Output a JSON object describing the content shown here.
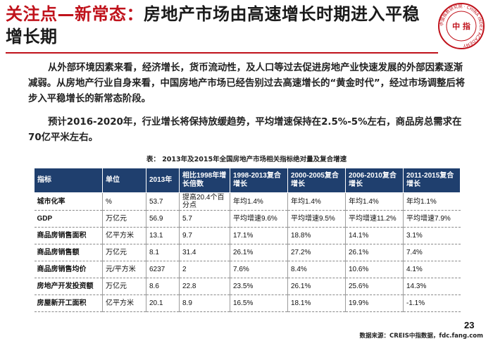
{
  "title": {
    "prefix": "关注点—新常态：",
    "rest": "房地产市场由高速增长时期进入平稳增长期"
  },
  "logo": {
    "center_text": "中 指",
    "ring_text": "中国指数研究院 · CHINA INDEX ACADEMY",
    "color": "#c0121b"
  },
  "paragraphs": [
    "从外部环境因素来看，经济增长，货币流动性，及人口等过去促进房地产业快速发展的外部因素逐渐减弱。从房地产行业自身来看，中国房地产市场已经告别过去高速增长的“黄金时代”，经过市场调整后将步入平稳增长的新常态阶段。",
    "预计2016-2020年，行业增长将保持放缓趋势，平均增速保持在2.5%-5%左右，商品房总需求在70亿平米左右。"
  ],
  "table_caption": "表： 2013年及2015年全国房地产市场相关指标绝对量及复合增速",
  "table": {
    "headers": [
      "指标",
      "单位",
      "2013年",
      "相比1998年增长倍数",
      "1998-2013复合增长",
      "2000-2005复合增长",
      "2006-2010复合增长",
      "2011-2015复合增长"
    ],
    "rows": [
      [
        "城市化率",
        "%",
        "53.7",
        "提高20.4个百分点",
        "年均1.4%",
        "年均1.4%",
        "年均1.4%",
        "年均1.1%"
      ],
      [
        "GDP",
        "万亿元",
        "56.9",
        "5.7",
        "平均增速9.6%",
        "平均增速9.5%",
        "平均增速11.2%",
        "平均增速7.9%"
      ],
      [
        "商品房销售面积",
        "亿平方米",
        "13.1",
        "9.7",
        "17.1%",
        "18.8%",
        "14.1%",
        "3.1%"
      ],
      [
        "商品房销售额",
        "万亿元",
        "8.1",
        "31.4",
        "26.1%",
        "27.2%",
        "26.1%",
        "7.4%"
      ],
      [
        "商品房销售均价",
        "元/平方米",
        "6237",
        "2",
        "7.6%",
        "8.4%",
        "10.6%",
        "4.1%"
      ],
      [
        "房地产开发投资额",
        "万亿元",
        "8.6",
        "22.8",
        "23.5%",
        "26.1%",
        "25.6%",
        "14.3%"
      ],
      [
        "房屋新开工面积",
        "亿平方米",
        "20.1",
        "8.9",
        "16.5%",
        "18.1%",
        "19.9%",
        "-1.1%"
      ]
    ]
  },
  "page_number": "23",
  "source": "数据来源：CREIS中指数据，fdc.fang.com"
}
